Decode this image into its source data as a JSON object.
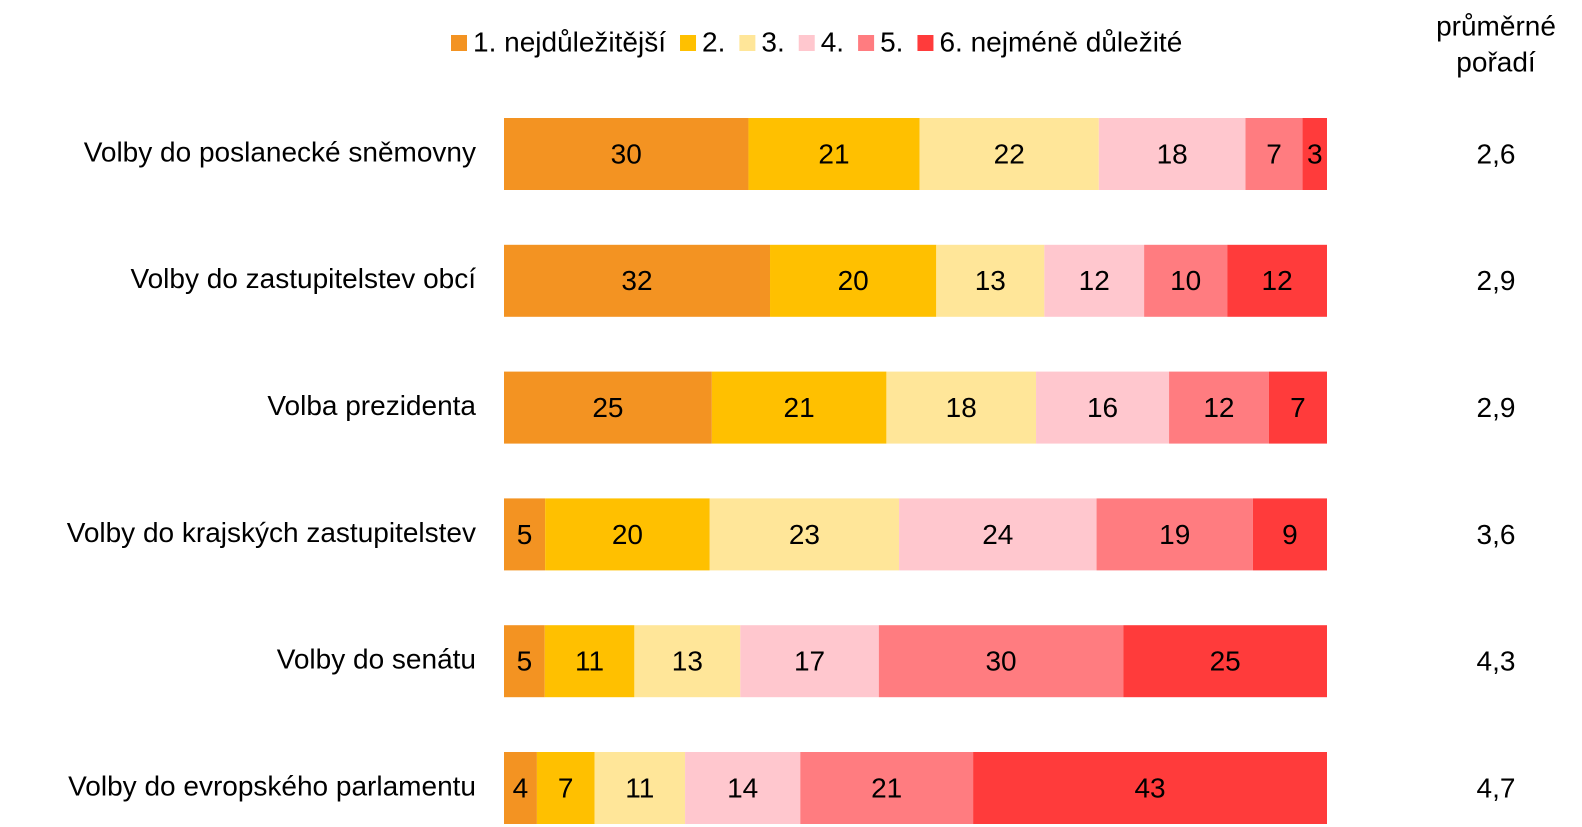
{
  "chart_data": {
    "type": "stacked_bar_horizontal",
    "categories": [
      "Volby do poslanecké sněmovny",
      "Volby do zastupitelstev obcí",
      "Volba prezidenta",
      "Volby do krajských zastupitelstev",
      "Volby do senátu",
      "Volby do evropského parlamentu"
    ],
    "series": [
      {
        "name": "1. nejdůležitější",
        "color": "#f39322",
        "values": [
          30,
          32,
          25,
          5,
          5,
          4
        ]
      },
      {
        "name": "2.",
        "color": "#ffc000",
        "values": [
          21,
          20,
          21,
          20,
          11,
          7
        ]
      },
      {
        "name": "3.",
        "color": "#ffe699",
        "values": [
          22,
          13,
          18,
          23,
          13,
          11
        ]
      },
      {
        "name": "4.",
        "color": "#ffc7ce",
        "values": [
          18,
          12,
          16,
          24,
          17,
          14
        ]
      },
      {
        "name": "5.",
        "color": "#ff7c80",
        "values": [
          7,
          10,
          12,
          19,
          30,
          21
        ]
      },
      {
        "name": "6. nejméně důležité",
        "color": "#ff3b3b",
        "values": [
          3,
          12,
          7,
          9,
          25,
          43
        ]
      }
    ],
    "legend": "top",
    "average_rank": {
      "title": [
        "průměrné",
        "pořadí"
      ],
      "values": [
        2.6,
        2.9,
        2.9,
        3.6,
        4.3,
        4.7
      ],
      "value_labels": [
        "2,6",
        "2,9",
        "2,9",
        "3,6",
        "4,3",
        "4,7"
      ]
    }
  }
}
